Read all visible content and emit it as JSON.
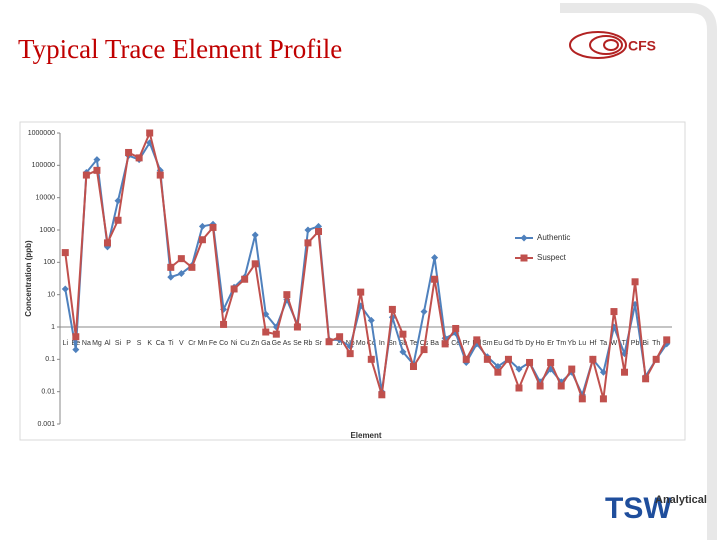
{
  "slide_title": "Typical Trace Element Profile",
  "logos": {
    "cfs": "CFS",
    "tsw": "TSW",
    "tsw_sub": "Analytical"
  },
  "chart_data": {
    "type": "line",
    "log_scale": true,
    "x_axis_crosses": 1,
    "x_label": "Element",
    "y_label": "Concentration (ppb)",
    "legend": "right",
    "categories": [
      "Li",
      "Be",
      "Na",
      "Mg",
      "Al",
      "Si",
      "P",
      "S",
      "K",
      "Ca",
      "Ti",
      "V",
      "Cr",
      "Mn",
      "Fe",
      "Co",
      "Ni",
      "Cu",
      "Zn",
      "Ga",
      "Ge",
      "As",
      "Se",
      "Rb",
      "Sr",
      "Y",
      "Zr",
      "Nb",
      "Mo",
      "Cd",
      "In",
      "Sn",
      "Sb",
      "Te",
      "Cs",
      "Ba",
      "La",
      "Ce",
      "Pr",
      "Nd",
      "Sm",
      "Eu",
      "Gd",
      "Tb",
      "Dy",
      "Ho",
      "Er",
      "Tm",
      "Yb",
      "Lu",
      "Hf",
      "Ta",
      "W",
      "Tl",
      "Pb",
      "Bi",
      "Th",
      "U"
    ],
    "series": [
      {
        "name": "Authentic",
        "color": "#4f81bd",
        "marker": "diamond",
        "values": [
          15,
          0.2,
          60000,
          150000,
          300,
          8000,
          200000,
          150000,
          500000,
          70000,
          35,
          45,
          80,
          1300,
          1500,
          3.5,
          17,
          35,
          700,
          2.5,
          1,
          7,
          1.2,
          1000,
          1300,
          0.4,
          0.4,
          0.25,
          4.5,
          1.6,
          0.01,
          2,
          0.17,
          0.07,
          3,
          140,
          0.45,
          0.65,
          0.08,
          0.3,
          0.12,
          0.06,
          0.1,
          0.05,
          0.08,
          0.02,
          0.05,
          0.02,
          0.04,
          0.008,
          0.1,
          0.04,
          1,
          0.15,
          5,
          0.03,
          0.1,
          0.3
        ]
      },
      {
        "name": "Suspect",
        "color": "#c0504d",
        "marker": "square",
        "values": [
          200,
          0.5,
          50000,
          70000,
          400,
          2000,
          250000,
          170000,
          1000000,
          50000,
          70,
          130,
          70,
          500,
          1200,
          1.2,
          15,
          30,
          90,
          0.7,
          0.6,
          10,
          1,
          400,
          900,
          0.35,
          0.5,
          0.15,
          12,
          0.1,
          0.008,
          3.5,
          0.6,
          0.06,
          0.2,
          30,
          0.3,
          0.9,
          0.1,
          0.4,
          0.1,
          0.04,
          0.1,
          0.013,
          0.08,
          0.015,
          0.08,
          0.015,
          0.05,
          0.006,
          0.1,
          0.006,
          3,
          0.04,
          25,
          0.025,
          0.1,
          0.4
        ]
      }
    ],
    "ylim": [
      0.001,
      1000000
    ],
    "yticks": [
      0.001,
      0.01,
      0.1,
      1,
      10,
      100,
      1000,
      10000,
      100000,
      1000000
    ]
  }
}
